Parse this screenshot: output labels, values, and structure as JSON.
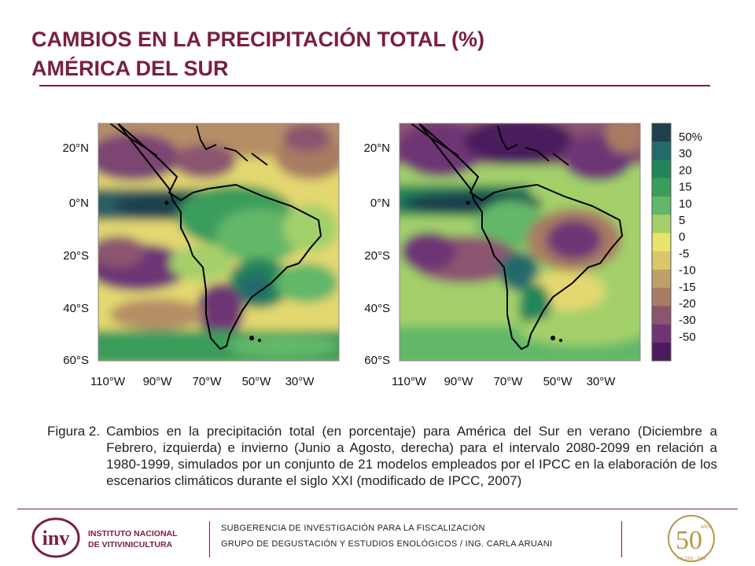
{
  "title": {
    "line1": "CAMBIOS EN LA PRECIPITACIÓN TOTAL (%)",
    "line2": "AMÉRICA DEL SUR"
  },
  "maps": {
    "lat_labels": [
      "20°N",
      "0°N",
      "20°S",
      "40°S",
      "60°S"
    ],
    "lon_labels": [
      "110°W",
      "90°W",
      "70°W",
      "50°W",
      "30°W"
    ],
    "panels": [
      {
        "id": "summer",
        "season_desc": "Diciembre a Febrero"
      },
      {
        "id": "winter",
        "season_desc": "Junio a Agosto"
      }
    ]
  },
  "colorbar": {
    "labels": [
      "50%",
      "30",
      "20",
      "15",
      "10",
      "5",
      "0",
      "-5",
      "-10",
      "-15",
      "-20",
      "-30",
      "-50"
    ],
    "colors": [
      "#1e3f4e",
      "#236b6a",
      "#24855a",
      "#3a9d5c",
      "#62b769",
      "#a3d06a",
      "#e8e56a",
      "#d9c76b",
      "#c0a06a",
      "#a77c62",
      "#8b5570",
      "#6e3574",
      "#4c1a5d"
    ]
  },
  "caption": {
    "label": "Figura 2.",
    "text": "Cambios en la precipitación total (en porcentaje) para América del Sur en verano (Diciembre a Febrero, izquierda) e invierno (Junio a Agosto, derecha) para el intervalo 2080-2099 en relación a 1980-1999, simulados por un conjunto de 21 modelos empleados por el IPCC en la elaboración de los escenarios climáticos durante el siglo XXI (modificado de IPCC, 2007)"
  },
  "footer": {
    "org_line1": "INSTITUTO NACIONAL",
    "org_line2": "DE VITIVINICULTURA",
    "logo_letters": "inv",
    "line1": "SUBGERENCIA DE INVESTIGACIÓN PARA LA FISCALIZACIÓN",
    "line2": "GRUPO DE DEGUSTACIÓN Y ESTUDIOS ENOLÓGICOS / ING. CARLA ARUANI",
    "anniv_number": "50",
    "anniv_word": "AÑOS",
    "anniv_years": "INV 1959 - 2009"
  },
  "accent_color": "#7a1f3d"
}
